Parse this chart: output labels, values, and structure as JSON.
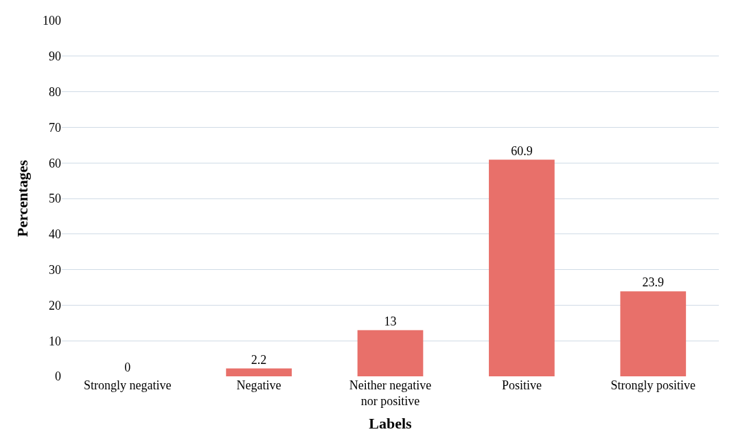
{
  "chart_data": {
    "type": "bar",
    "categories": [
      "Strongly negative",
      "Negative",
      "Neither negative nor positive",
      "Positive",
      "Strongly positive"
    ],
    "values": [
      0,
      2.2,
      13,
      60.9,
      23.9
    ],
    "color": "#e8706a",
    "xlabel": "Labels",
    "ylabel": "Percentages",
    "ylim": [
      0,
      100
    ],
    "yticks": [
      0,
      10,
      20,
      30,
      40,
      50,
      60,
      70,
      80,
      90,
      100
    ],
    "grid": "y",
    "data_labels": true,
    "legend": false
  }
}
